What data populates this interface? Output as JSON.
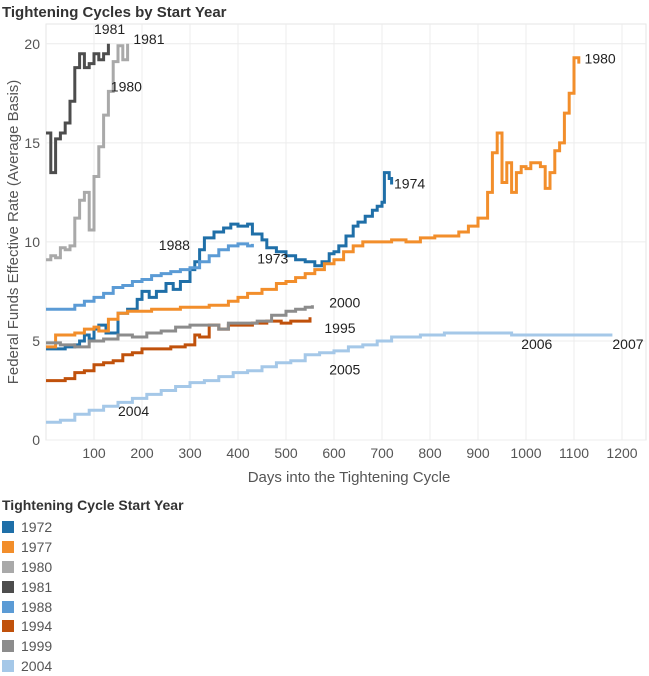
{
  "chart_data": {
    "type": "line",
    "title": "Tightening Cycles by Start Year",
    "xlabel": "Days into the Tightening Cycle",
    "ylabel": "Federal Funds Effective Rate (Average Basis)",
    "xlim": [
      0,
      1250
    ],
    "ylim": [
      0,
      21
    ],
    "x_ticks": [
      100,
      200,
      300,
      400,
      500,
      600,
      700,
      800,
      900,
      1000,
      1100,
      1200
    ],
    "y_ticks": [
      0,
      5,
      10,
      15,
      20
    ],
    "legend_title": "Tightening Cycle Start Year",
    "legend_position": "bottom-left",
    "grid": true,
    "series": [
      {
        "name": "1972",
        "color": "#1f6fa8",
        "points": [
          [
            0,
            4.6
          ],
          [
            20,
            4.6
          ],
          [
            40,
            4.7
          ],
          [
            60,
            4.8
          ],
          [
            70,
            5.0
          ],
          [
            80,
            5.3
          ],
          [
            90,
            5.1
          ],
          [
            100,
            5.6
          ],
          [
            110,
            5.8
          ],
          [
            125,
            5.4
          ],
          [
            150,
            6.4
          ],
          [
            170,
            6.6
          ],
          [
            190,
            7.1
          ],
          [
            200,
            7.5
          ],
          [
            215,
            7.2
          ],
          [
            230,
            7.5
          ],
          [
            250,
            7.9
          ],
          [
            265,
            7.6
          ],
          [
            280,
            8.0
          ],
          [
            300,
            8.6
          ],
          [
            310,
            9.0
          ],
          [
            320,
            9.6
          ],
          [
            330,
            10.2
          ],
          [
            350,
            10.5
          ],
          [
            370,
            10.7
          ],
          [
            385,
            10.9
          ],
          [
            400,
            10.8
          ],
          [
            420,
            10.9
          ],
          [
            430,
            10.4
          ],
          [
            450,
            10.1
          ],
          [
            460,
            9.7
          ],
          [
            480,
            9.5
          ],
          [
            500,
            9.3
          ],
          [
            520,
            9.1
          ],
          [
            540,
            9.0
          ],
          [
            560,
            8.8
          ],
          [
            575,
            9.0
          ],
          [
            590,
            9.4
          ],
          [
            600,
            9.5
          ],
          [
            610,
            9.8
          ],
          [
            625,
            10.3
          ],
          [
            640,
            10.8
          ],
          [
            650,
            11.0
          ],
          [
            665,
            11.3
          ],
          [
            680,
            11.6
          ],
          [
            690,
            11.8
          ],
          [
            700,
            12.0
          ],
          [
            705,
            13.5
          ],
          [
            715,
            13.2
          ],
          [
            720,
            12.9
          ]
        ]
      },
      {
        "name": "1977",
        "color": "#f28e2b",
        "points": [
          [
            0,
            4.7
          ],
          [
            20,
            5.3
          ],
          [
            40,
            5.3
          ],
          [
            60,
            5.4
          ],
          [
            80,
            5.6
          ],
          [
            100,
            5.7
          ],
          [
            110,
            5.5
          ],
          [
            130,
            6.1
          ],
          [
            150,
            6.4
          ],
          [
            170,
            6.5
          ],
          [
            200,
            6.5
          ],
          [
            220,
            6.6
          ],
          [
            250,
            6.6
          ],
          [
            280,
            6.7
          ],
          [
            310,
            6.7
          ],
          [
            340,
            6.8
          ],
          [
            360,
            6.8
          ],
          [
            380,
            7.0
          ],
          [
            400,
            7.2
          ],
          [
            420,
            7.4
          ],
          [
            450,
            7.6
          ],
          [
            480,
            7.9
          ],
          [
            500,
            8.0
          ],
          [
            520,
            8.2
          ],
          [
            540,
            8.4
          ],
          [
            560,
            8.6
          ],
          [
            580,
            8.9
          ],
          [
            600,
            9.1
          ],
          [
            620,
            9.5
          ],
          [
            640,
            9.8
          ],
          [
            660,
            10.0
          ],
          [
            690,
            10.0
          ],
          [
            720,
            10.1
          ],
          [
            750,
            10.0
          ],
          [
            780,
            10.2
          ],
          [
            810,
            10.3
          ],
          [
            840,
            10.3
          ],
          [
            860,
            10.5
          ],
          [
            880,
            10.8
          ],
          [
            900,
            11.2
          ],
          [
            920,
            12.5
          ],
          [
            930,
            14.5
          ],
          [
            940,
            15.5
          ],
          [
            950,
            13.0
          ],
          [
            960,
            14.0
          ],
          [
            970,
            12.5
          ],
          [
            980,
            13.5
          ],
          [
            990,
            13.8
          ],
          [
            1000,
            13.7
          ],
          [
            1010,
            14.0
          ],
          [
            1030,
            13.8
          ],
          [
            1040,
            12.7
          ],
          [
            1050,
            13.5
          ],
          [
            1060,
            14.6
          ],
          [
            1070,
            15.0
          ],
          [
            1080,
            16.5
          ],
          [
            1090,
            17.5
          ],
          [
            1100,
            19.3
          ],
          [
            1110,
            19.0
          ]
        ]
      },
      {
        "name": "1980",
        "color": "#a9a9a9",
        "points": [
          [
            0,
            9.1
          ],
          [
            10,
            9.3
          ],
          [
            20,
            9.2
          ],
          [
            30,
            9.7
          ],
          [
            40,
            9.6
          ],
          [
            50,
            9.8
          ],
          [
            60,
            11.2
          ],
          [
            70,
            12.1
          ],
          [
            80,
            12.5
          ],
          [
            90,
            10.6
          ],
          [
            100,
            13.3
          ],
          [
            110,
            14.8
          ],
          [
            120,
            16.4
          ],
          [
            130,
            17.6
          ],
          [
            140,
            19.1
          ],
          [
            150,
            19.9
          ],
          [
            160,
            19.2
          ],
          [
            170,
            20.0
          ]
        ]
      },
      {
        "name": "1981",
        "color": "#4d4d4d",
        "points": [
          [
            0,
            15.5
          ],
          [
            10,
            13.5
          ],
          [
            20,
            15.2
          ],
          [
            30,
            15.5
          ],
          [
            40,
            16.0
          ],
          [
            50,
            17.1
          ],
          [
            60,
            18.8
          ],
          [
            70,
            19.5
          ],
          [
            80,
            18.8
          ],
          [
            90,
            19.0
          ],
          [
            100,
            19.5
          ],
          [
            110,
            19.2
          ],
          [
            120,
            19.5
          ],
          [
            130,
            20.0
          ]
        ]
      },
      {
        "name": "1988",
        "color": "#5b9bd5",
        "points": [
          [
            0,
            6.6
          ],
          [
            20,
            6.6
          ],
          [
            40,
            6.6
          ],
          [
            60,
            6.8
          ],
          [
            80,
            7.0
          ],
          [
            100,
            7.2
          ],
          [
            120,
            7.4
          ],
          [
            140,
            7.7
          ],
          [
            160,
            7.8
          ],
          [
            180,
            8.0
          ],
          [
            200,
            8.1
          ],
          [
            220,
            8.3
          ],
          [
            240,
            8.4
          ],
          [
            260,
            8.5
          ],
          [
            280,
            8.6
          ],
          [
            300,
            8.7
          ],
          [
            320,
            9.0
          ],
          [
            340,
            9.3
          ],
          [
            360,
            9.6
          ],
          [
            380,
            9.8
          ],
          [
            400,
            9.9
          ],
          [
            420,
            9.8
          ],
          [
            430,
            9.9
          ]
        ]
      },
      {
        "name": "1994",
        "color": "#c0510b",
        "points": [
          [
            0,
            3.0
          ],
          [
            20,
            3.0
          ],
          [
            40,
            3.1
          ],
          [
            60,
            3.4
          ],
          [
            80,
            3.5
          ],
          [
            100,
            3.8
          ],
          [
            120,
            3.9
          ],
          [
            140,
            4.0
          ],
          [
            160,
            4.3
          ],
          [
            180,
            4.4
          ],
          [
            200,
            4.6
          ],
          [
            230,
            4.6
          ],
          [
            260,
            4.7
          ],
          [
            290,
            4.8
          ],
          [
            310,
            5.3
          ],
          [
            320,
            5.2
          ],
          [
            340,
            5.8
          ],
          [
            360,
            5.6
          ],
          [
            380,
            5.8
          ],
          [
            400,
            5.8
          ],
          [
            430,
            5.9
          ],
          [
            460,
            6.0
          ],
          [
            490,
            5.9
          ],
          [
            510,
            6.0
          ],
          [
            540,
            6.0
          ],
          [
            550,
            6.2
          ]
        ]
      },
      {
        "name": "1999",
        "color": "#8c8c8c",
        "points": [
          [
            0,
            4.9
          ],
          [
            30,
            4.8
          ],
          [
            60,
            4.7
          ],
          [
            90,
            5.0
          ],
          [
            120,
            5.1
          ],
          [
            150,
            5.3
          ],
          [
            180,
            5.2
          ],
          [
            210,
            5.4
          ],
          [
            240,
            5.5
          ],
          [
            270,
            5.7
          ],
          [
            300,
            5.8
          ],
          [
            340,
            5.8
          ],
          [
            360,
            5.6
          ],
          [
            380,
            5.9
          ],
          [
            410,
            5.9
          ],
          [
            440,
            6.0
          ],
          [
            470,
            6.3
          ],
          [
            500,
            6.5
          ],
          [
            520,
            6.6
          ],
          [
            540,
            6.7
          ],
          [
            555,
            6.8
          ]
        ]
      },
      {
        "name": "2004",
        "color": "#a5c8e8",
        "points": [
          [
            0,
            0.9
          ],
          [
            30,
            1.0
          ],
          [
            60,
            1.3
          ],
          [
            90,
            1.5
          ],
          [
            120,
            1.7
          ],
          [
            150,
            1.9
          ],
          [
            180,
            2.1
          ],
          [
            210,
            2.3
          ],
          [
            240,
            2.5
          ],
          [
            270,
            2.7
          ],
          [
            300,
            2.9
          ],
          [
            330,
            3.0
          ],
          [
            360,
            3.2
          ],
          [
            390,
            3.4
          ],
          [
            420,
            3.5
          ],
          [
            450,
            3.7
          ],
          [
            480,
            3.9
          ],
          [
            510,
            4.0
          ],
          [
            540,
            4.3
          ],
          [
            570,
            4.4
          ],
          [
            600,
            4.5
          ],
          [
            630,
            4.7
          ],
          [
            660,
            4.8
          ],
          [
            690,
            5.0
          ],
          [
            720,
            5.2
          ],
          [
            750,
            5.2
          ],
          [
            780,
            5.3
          ],
          [
            800,
            5.3
          ],
          [
            830,
            5.4
          ],
          [
            870,
            5.4
          ],
          [
            920,
            5.4
          ],
          [
            970,
            5.3
          ],
          [
            1020,
            5.3
          ],
          [
            1070,
            5.3
          ],
          [
            1120,
            5.3
          ],
          [
            1180,
            5.3
          ]
        ]
      }
    ],
    "annotations": [
      {
        "text": "1981",
        "x": 100,
        "y": 20.5
      },
      {
        "text": "1981",
        "x": 182,
        "y": 20.0
      },
      {
        "text": "1980",
        "x": 135,
        "y": 17.6
      },
      {
        "text": "1980",
        "x": 1122,
        "y": 19.0
      },
      {
        "text": "1974",
        "x": 725,
        "y": 12.7
      },
      {
        "text": "1988",
        "x": 235,
        "y": 9.6
      },
      {
        "text": "1973",
        "x": 440,
        "y": 8.9
      },
      {
        "text": "2000",
        "x": 590,
        "y": 6.7
      },
      {
        "text": "1995",
        "x": 580,
        "y": 5.4
      },
      {
        "text": "2005",
        "x": 590,
        "y": 3.3
      },
      {
        "text": "2004",
        "x": 150,
        "y": 1.2
      },
      {
        "text": "2006",
        "x": 990,
        "y": 4.6
      },
      {
        "text": "2007",
        "x": 1180,
        "y": 4.6
      }
    ]
  }
}
